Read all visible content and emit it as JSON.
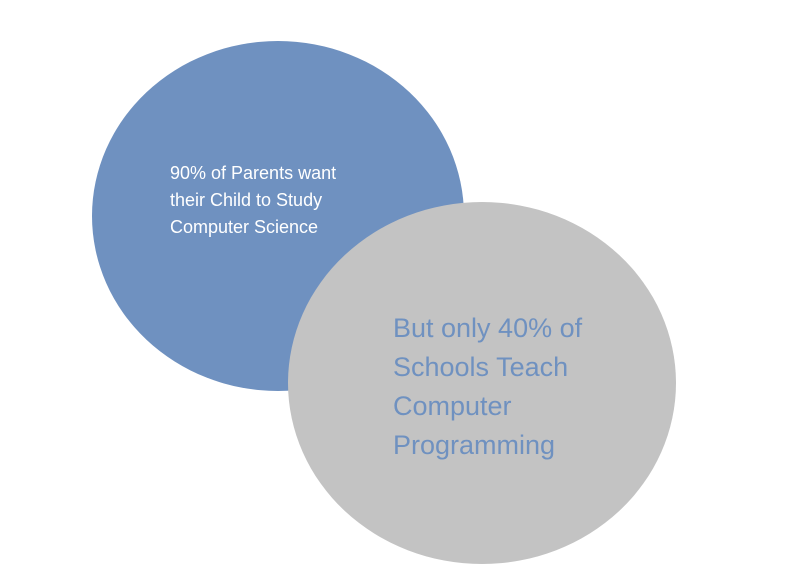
{
  "diagram": {
    "circle_parents": {
      "text": "90% of Parents want\ntheir Child to Study\nComputer Science",
      "fill_color": "#6f91c0",
      "text_color": "#ffffff"
    },
    "circle_schools": {
      "text": "But only 40% of\nSchools Teach\nComputer\nProgramming",
      "fill_color": "#c3c3c3",
      "text_color": "#6f91c0"
    }
  }
}
